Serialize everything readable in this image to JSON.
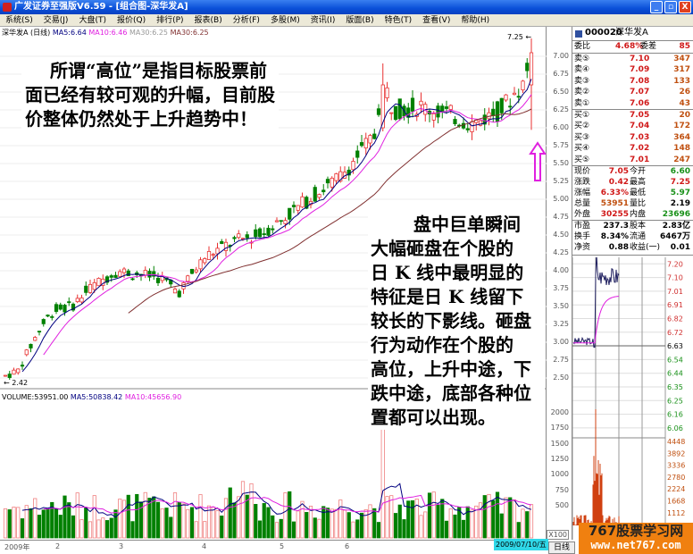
{
  "window": {
    "title": "广发证券至强版V6.59 - [组合图-深华发A]",
    "min": "_",
    "restore": "▫",
    "close": "X"
  },
  "menu": [
    "系统(S)",
    "交易(J)",
    "大盘(T)",
    "报价(Q)",
    "排行(P)",
    "报表(B)",
    "分析(F)",
    "多股(M)",
    "资讯(I)",
    "版面(B)",
    "特色(T)",
    "查看(V)",
    "帮助(H)"
  ],
  "chart_header": {
    "stock": "深华发A (日线)",
    "ma5": "MA5:6.64",
    "ma10": "MA10:6.46",
    "ma30a": "MA30:6.25",
    "ma30b": "MA30:6.25"
  },
  "volume_header": {
    "volume": "VOLUME:53951.00",
    "ma5": "MA5:50838.42",
    "ma10": "MA10:45656.90"
  },
  "price_axis": [
    "7.00",
    "6.75",
    "6.50",
    "6.25",
    "6.00",
    "5.75",
    "5.50",
    "5.25",
    "5.00",
    "4.75",
    "4.50",
    "4.25",
    "4.00",
    "3.75",
    "3.50",
    "3.25",
    "3.00",
    "2.75",
    "2.50"
  ],
  "volume_axis": [
    "2000",
    "1750",
    "1500",
    "1250",
    "1000",
    "750",
    "500"
  ],
  "volume_unit": "X100",
  "markers": {
    "high": "7.25",
    "low": "2.42"
  },
  "time_axis": [
    "2009年",
    "2",
    "3",
    "4",
    "5",
    "6"
  ],
  "current_date": "2009/07/10/五",
  "day_tab": "日线",
  "colors": {
    "up": "#e83030",
    "down": "#008000",
    "ma5": "#000080",
    "ma10": "#e020e0",
    "ma30": "#803030",
    "arrow": "#e020e0"
  },
  "quote": {
    "code": "000020",
    "name": "深华发A",
    "weibi": {
      "label": "委比",
      "value": "4.68%",
      "label2": "委差",
      "value2": "85"
    },
    "asks": [
      {
        "label": "卖⑤",
        "price": "7.10",
        "vol": "347"
      },
      {
        "label": "卖④",
        "price": "7.09",
        "vol": "317"
      },
      {
        "label": "卖③",
        "price": "7.08",
        "vol": "133"
      },
      {
        "label": "卖②",
        "price": "7.07",
        "vol": "26"
      },
      {
        "label": "卖①",
        "price": "7.06",
        "vol": "43"
      }
    ],
    "bids": [
      {
        "label": "买①",
        "price": "7.05",
        "vol": "20"
      },
      {
        "label": "买②",
        "price": "7.04",
        "vol": "172"
      },
      {
        "label": "买③",
        "price": "7.03",
        "vol": "364"
      },
      {
        "label": "买④",
        "price": "7.02",
        "vol": "148"
      },
      {
        "label": "买⑤",
        "price": "7.01",
        "vol": "247"
      }
    ],
    "stats": [
      {
        "l1": "现价",
        "v1": "7.05",
        "c1": "red",
        "l2": "今开",
        "v2": "6.60",
        "c2": "grn"
      },
      {
        "l1": "涨跌",
        "v1": "0.42",
        "c1": "red",
        "l2": "最高",
        "v2": "7.25",
        "c2": "red"
      },
      {
        "l1": "涨幅",
        "v1": "6.33%",
        "c1": "red",
        "l2": "最低",
        "v2": "5.97",
        "c2": "grn"
      },
      {
        "l1": "总量",
        "v1": "53951",
        "c1": "brn",
        "l2": "量比",
        "v2": "2.19",
        "c2": "blk"
      },
      {
        "l1": "外盘",
        "v1": "30255",
        "c1": "red",
        "l2": "内盘",
        "v2": "23696",
        "c2": "grn"
      }
    ],
    "fund": [
      {
        "l1": "市盈",
        "v1": "237.3",
        "l2": "股本",
        "v2": "2.83亿"
      },
      {
        "l1": "换手",
        "v1": "8.34%",
        "l2": "流通",
        "v2": "6467万"
      },
      {
        "l1": "净资",
        "v1": "0.88",
        "l2": "收益(一)",
        "v2": "0.01"
      }
    ]
  },
  "intraday": {
    "price_labels": [
      "7.29",
      "7.20",
      "7.10",
      "7.01",
      "6.91",
      "6.82",
      "6.72",
      "6.63",
      "6.54",
      "6.44",
      "6.35",
      "6.25",
      "6.16",
      "6.06"
    ],
    "prev_close": "6.63",
    "volume_labels": [
      "4448",
      "3892",
      "3336",
      "2780",
      "2224",
      "1668",
      "1112"
    ]
  },
  "notes": {
    "left": [
      "所谓“高位”是指目标股票前",
      "面已经有较可观的升幅，目前股",
      "价整体仍然处于上升趋势中！"
    ],
    "right": [
      "盘中巨单瞬间",
      "大幅砸盘在个股的",
      "日 K 线中最明显的",
      "特征是日 K 线留下",
      "较长的下影线。砸盘",
      "行为动作在个股的",
      "高位，上升中途，下",
      "跌中途，底部各种位",
      "置都可以出现。"
    ]
  },
  "watermark": {
    "name": "767股票学习网",
    "url": "www.net767.com"
  }
}
